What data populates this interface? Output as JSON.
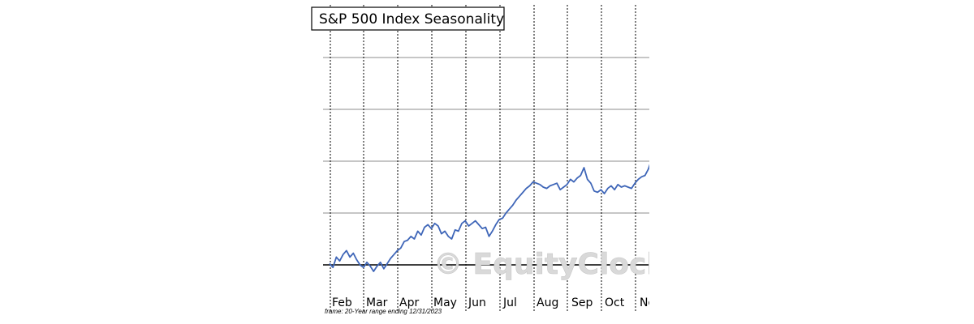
{
  "chart_data": {
    "type": "line",
    "title": "S&P 500 Index Seasonality",
    "xlabel": "",
    "ylabel": "",
    "categories": [
      "Feb",
      "Mar",
      "Apr",
      "May",
      "Jun",
      "Jul",
      "Aug",
      "Sep",
      "Oct",
      "No"
    ],
    "grid": true,
    "xlim": [
      0,
      10
    ],
    "ylim": [
      -1,
      8.5
    ],
    "series": [
      {
        "name": "S&P 500 Index Seasonality",
        "color": "#3f66b8",
        "x": [
          0,
          0.1,
          0.2,
          0.3,
          0.4,
          0.5,
          0.6,
          0.7,
          0.8,
          0.9,
          1.0,
          1.1,
          1.2,
          1.3,
          1.4,
          1.5,
          1.6,
          1.7,
          1.8,
          1.9,
          2.0,
          2.1,
          2.2,
          2.3,
          2.4,
          2.5,
          2.6,
          2.7,
          2.8,
          2.9,
          3.0,
          3.1,
          3.2,
          3.3,
          3.4,
          3.5,
          3.6,
          3.7,
          3.8,
          3.9,
          4.0,
          4.1,
          4.2,
          4.3,
          4.4,
          4.5,
          4.6,
          4.7,
          4.8,
          4.9,
          5.0,
          5.1,
          5.2,
          5.3,
          5.4,
          5.5,
          5.6,
          5.7,
          5.8,
          5.9,
          6.0,
          6.1,
          6.2,
          6.3,
          6.4,
          6.5,
          6.6,
          6.7,
          6.8,
          6.9,
          7.0,
          7.1,
          7.2,
          7.3,
          7.4,
          7.5,
          7.6,
          7.7,
          7.8,
          7.9,
          8.0,
          8.1,
          8.2,
          8.3,
          8.4,
          8.5,
          8.6,
          8.7,
          8.8,
          8.9,
          9.0,
          9.1,
          9.2,
          9.3,
          9.4,
          9.5,
          9.6
        ],
        "values": [
          0.1,
          -0.2,
          0.6,
          0.3,
          0.8,
          1.1,
          0.6,
          0.9,
          0.4,
          0.0,
          -0.2,
          0.2,
          -0.1,
          -0.5,
          -0.1,
          0.2,
          -0.3,
          0.1,
          0.5,
          0.8,
          1.1,
          1.3,
          1.8,
          1.9,
          2.2,
          2.0,
          2.6,
          2.3,
          2.9,
          3.1,
          2.8,
          3.2,
          3.0,
          2.4,
          2.6,
          2.2,
          2.0,
          2.7,
          2.6,
          3.2,
          3.4,
          3.0,
          3.2,
          3.4,
          3.1,
          2.8,
          2.9,
          2.2,
          2.6,
          3.1,
          3.5,
          3.6,
          4.0,
          4.3,
          4.6,
          5.0,
          5.3,
          5.6,
          5.9,
          6.1,
          6.4,
          6.3,
          6.2,
          6.0,
          5.9,
          6.1,
          6.2,
          6.3,
          5.8,
          6.0,
          6.2,
          6.6,
          6.4,
          6.7,
          6.9,
          7.5,
          6.6,
          6.3,
          5.7,
          5.6,
          5.8,
          5.5,
          5.9,
          6.1,
          5.8,
          6.2,
          6.0,
          6.1,
          6.0,
          5.9,
          6.3,
          6.6,
          6.8,
          6.9,
          7.4,
          8.2,
          8.9
        ]
      }
    ],
    "annotations": [
      "frame: 20-Year range ending 12/31/2023",
      "© EquityClock.com"
    ]
  }
}
